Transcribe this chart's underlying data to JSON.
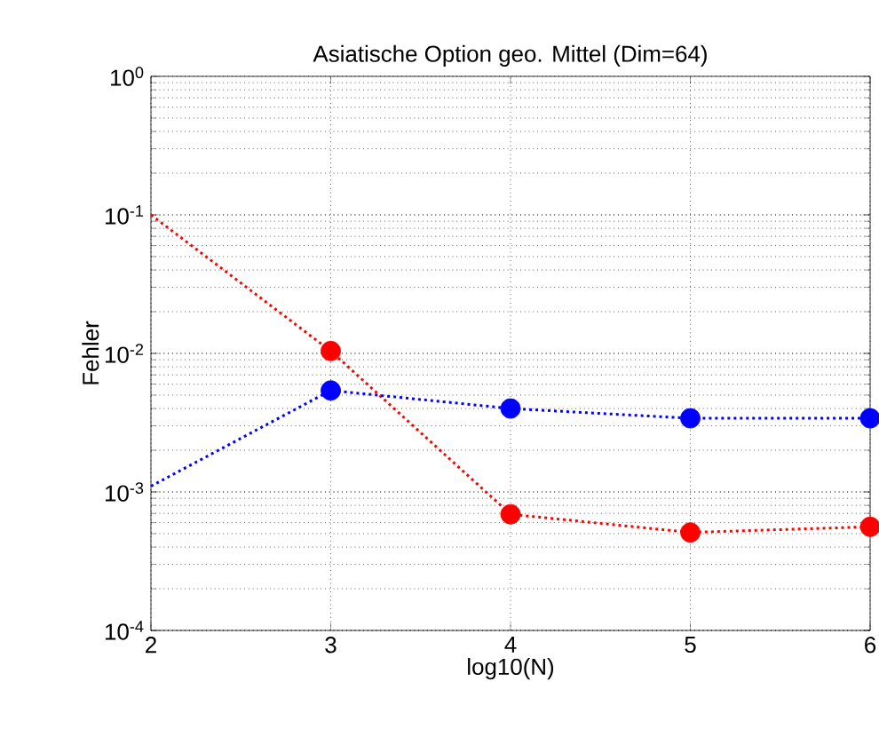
{
  "chart_data": {
    "type": "line",
    "title": "Asiatische Option geo. Mittel (Dim=64)",
    "xlabel": "log10(N)",
    "ylabel": "Fehler",
    "log": "y",
    "grid": true,
    "xlim": [
      2,
      6
    ],
    "xticks": [
      2,
      3,
      4,
      5,
      6
    ],
    "ylim": [
      0.0001,
      1
    ],
    "yticks": [
      {
        "value": 0.0001,
        "label": "10$^{-4}$"
      },
      {
        "value": 0.001,
        "label": "10$^{-3}$"
      },
      {
        "value": 0.01,
        "label": "10$^{-2}$"
      },
      {
        "value": 0.1,
        "label": "10$^{-1}$"
      },
      {
        "value": 1,
        "label": "10$^{0}$"
      }
    ],
    "series": [
      {
        "color": "#ff0000",
        "line_style": "dotted",
        "marker": "none",
        "x": [
          2,
          3,
          4,
          5,
          6
        ],
        "values": [
          0.1,
          0.0104,
          0.00069,
          0.00051,
          0.00056
        ]
      },
      {
        "color": "#0000ff",
        "line_style": "dotted",
        "marker": "none",
        "x": [
          2,
          3,
          4,
          5,
          6
        ],
        "values": [
          0.0011,
          0.0054,
          0.004,
          0.0034,
          0.0034
        ]
      },
      {
        "type": "scatter",
        "color": "#ff0000",
        "marker": "circle",
        "x": [
          3,
          4,
          5,
          6
        ],
        "values": [
          0.0104,
          0.00069,
          0.00051,
          0.00056
        ]
      },
      {
        "type": "scatter",
        "color": "#0000ff",
        "marker": "circle",
        "x": [
          3,
          4,
          5,
          6
        ],
        "values": [
          0.0054,
          0.004,
          0.0034,
          0.0034
        ]
      }
    ]
  }
}
